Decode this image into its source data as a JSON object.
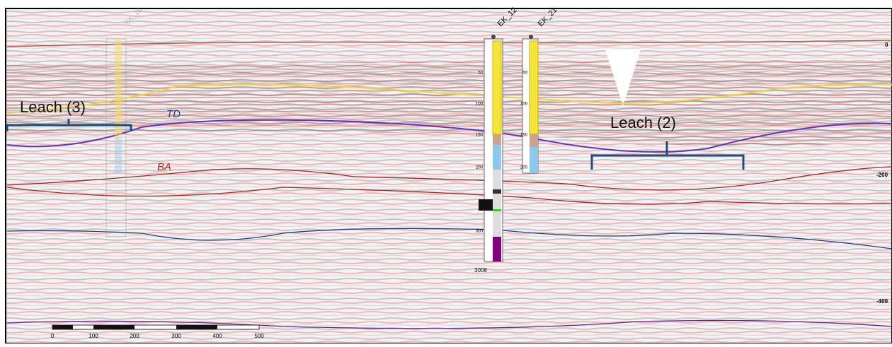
{
  "wells": [
    {
      "name": "EK_18"
    },
    {
      "name": "EK_12"
    },
    {
      "name": "EK_21"
    }
  ],
  "horizons": {
    "td": "TD",
    "ba": "BA"
  },
  "annotations": [
    "Leach (3)",
    "Leach (2)"
  ],
  "well_depths": [
    "50",
    "100",
    "150",
    "200",
    "300"
  ],
  "well_bottom": "3008",
  "scale_bar": [
    "0",
    "100",
    "200",
    "300",
    "400",
    "500"
  ],
  "time_axis": [
    "0",
    "-200",
    "-400"
  ]
}
